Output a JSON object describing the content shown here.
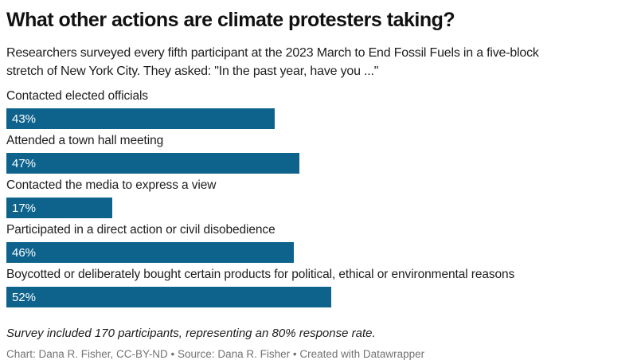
{
  "colors": {
    "bg": "#ffffff",
    "title": "#111111",
    "text": "#1d1d1d",
    "bar": "#0e638c",
    "bar-value-text": "#ffffff",
    "credit": "#737373"
  },
  "header": {
    "title": "What other actions are climate protesters taking?",
    "subtitle_lines": [
      "Researchers surveyed every fifth participant at the 2023 March to End Fossil Fuels in a five-block",
      "stretch of New York City. They asked: \"In the past year, have you ...\""
    ]
  },
  "chart_data": {
    "type": "bar",
    "orientation": "horizontal",
    "title": "What other actions are climate protesters taking?",
    "categories": [
      "Contacted elected officials",
      "Attended a town hall meeting",
      "Contacted the media to express a view",
      "Participated in a direct action or civil disobedience",
      "Boycotted or deliberately bought certain products for political, ethical or environmental reasons"
    ],
    "values": [
      43,
      47,
      17,
      46,
      52
    ],
    "value_labels": [
      "43%",
      "47%",
      "17%",
      "46%",
      "52%"
    ],
    "xlabel": "",
    "ylabel": "",
    "xlim": [
      0,
      100
    ],
    "grid": false,
    "legend": false,
    "bar_color": "#0e638c",
    "value_label_position": "inside-left"
  },
  "footer": {
    "note": "Survey included 170 participants, representing an 80% response rate.",
    "credit": "Chart: Dana R. Fisher, CC-BY-ND • Source: Dana R. Fisher • Created with Datawrapper"
  }
}
